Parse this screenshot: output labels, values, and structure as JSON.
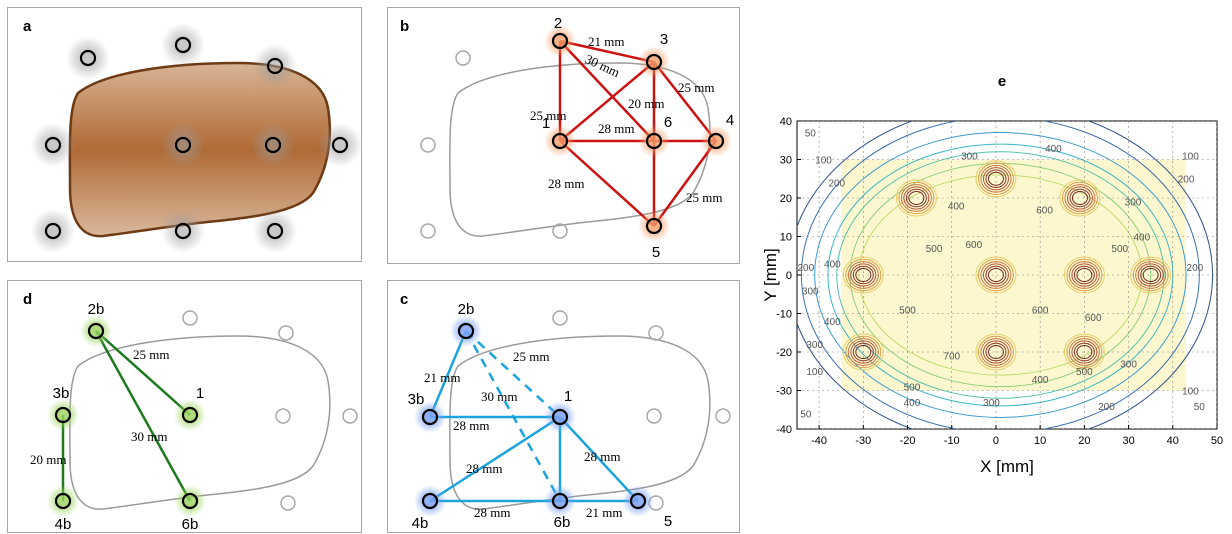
{
  "panels": {
    "a": {
      "label": "a"
    },
    "b": {
      "label": "b",
      "nodes": [
        "1",
        "2",
        "3",
        "4",
        "5",
        "6"
      ],
      "distances": [
        "21 mm",
        "30 mm",
        "25 mm",
        "20 mm",
        "25 mm",
        "28 mm",
        "28 mm",
        "25 mm"
      ],
      "color": "#cc1111"
    },
    "c": {
      "label": "c",
      "nodes": [
        "2b",
        "3b",
        "1",
        "4b",
        "6b",
        "5"
      ],
      "distances": [
        "25 mm",
        "21 mm",
        "30 mm",
        "28 mm",
        "28 mm",
        "28 mm",
        "28 mm",
        "21 mm"
      ],
      "color": "#1aa3dd"
    },
    "d": {
      "label": "d",
      "nodes": [
        "2b",
        "3b",
        "1",
        "4b",
        "6b"
      ],
      "distances": [
        "25 mm",
        "30 mm",
        "20 mm"
      ],
      "color": "#1f7a1f"
    },
    "e": {
      "label": "e"
    }
  },
  "chart_data": {
    "type": "contour",
    "title": "e",
    "xlabel": "X [mm]",
    "ylabel": "Y [mm]",
    "xlim": [
      -45,
      50
    ],
    "ylim": [
      -40,
      40
    ],
    "xticks": [
      "-40",
      "-30",
      "-20",
      "-10",
      "0",
      "10",
      "20",
      "30",
      "40",
      "50"
    ],
    "yticks": [
      "40",
      "30",
      "20",
      "10",
      "0",
      "-10",
      "-20",
      "-30",
      "-40"
    ],
    "grid": true,
    "peaks": [
      {
        "x": -18,
        "y": 20
      },
      {
        "x": 0,
        "y": 25
      },
      {
        "x": 19,
        "y": 20
      },
      {
        "x": -30,
        "y": 0
      },
      {
        "x": 0,
        "y": 0
      },
      {
        "x": 20,
        "y": 0
      },
      {
        "x": 35,
        "y": 0
      },
      {
        "x": -30,
        "y": -20
      },
      {
        "x": 0,
        "y": -20
      },
      {
        "x": 20,
        "y": -20
      }
    ],
    "contour_labels": [
      {
        "text": "50",
        "x": -42,
        "y": 36
      },
      {
        "text": "100",
        "x": -39,
        "y": 29
      },
      {
        "text": "200",
        "x": -36,
        "y": 23
      },
      {
        "text": "300",
        "x": -6,
        "y": 30
      },
      {
        "text": "400",
        "x": 13,
        "y": 32
      },
      {
        "text": "100",
        "x": 44,
        "y": 30
      },
      {
        "text": "200",
        "x": 43,
        "y": 24
      },
      {
        "text": "300",
        "x": 31,
        "y": 18
      },
      {
        "text": "400",
        "x": 33,
        "y": 9
      },
      {
        "text": "500",
        "x": 28,
        "y": 6
      },
      {
        "text": "600",
        "x": -5,
        "y": 7
      },
      {
        "text": "600",
        "x": 11,
        "y": 16
      },
      {
        "text": "500",
        "x": -14,
        "y": 6
      },
      {
        "text": "400",
        "x": -9,
        "y": 17
      },
      {
        "text": "400",
        "x": -37,
        "y": 2
      },
      {
        "text": "200",
        "x": -43,
        "y": 1
      },
      {
        "text": "300",
        "x": -42,
        "y": -5
      },
      {
        "text": "400",
        "x": -37,
        "y": -13
      },
      {
        "text": "500",
        "x": -20,
        "y": -10
      },
      {
        "text": "600",
        "x": 10,
        "y": -10
      },
      {
        "text": "600",
        "x": 22,
        "y": -12
      },
      {
        "text": "700",
        "x": -10,
        "y": -22
      },
      {
        "text": "500",
        "x": -19,
        "y": -30
      },
      {
        "text": "400",
        "x": 10,
        "y": -28
      },
      {
        "text": "300",
        "x": 30,
        "y": -24
      },
      {
        "text": "500",
        "x": 20,
        "y": -26
      },
      {
        "text": "400",
        "x": -19,
        "y": -34
      },
      {
        "text": "300",
        "x": -1,
        "y": -34
      },
      {
        "text": "200",
        "x": 25,
        "y": -35
      },
      {
        "text": "100",
        "x": 44,
        "y": -31
      },
      {
        "text": "50",
        "x": 46,
        "y": -35
      },
      {
        "text": "200",
        "x": 45,
        "y": 1
      },
      {
        "text": "300",
        "x": -41,
        "y": -19
      },
      {
        "text": "100",
        "x": -41,
        "y": -26
      },
      {
        "text": "50",
        "x": -43,
        "y": -37
      },
      {
        "text": "200",
        "x": 20,
        "y": 41
      },
      {
        "text": "200",
        "x": -15,
        "y": 41
      }
    ]
  }
}
